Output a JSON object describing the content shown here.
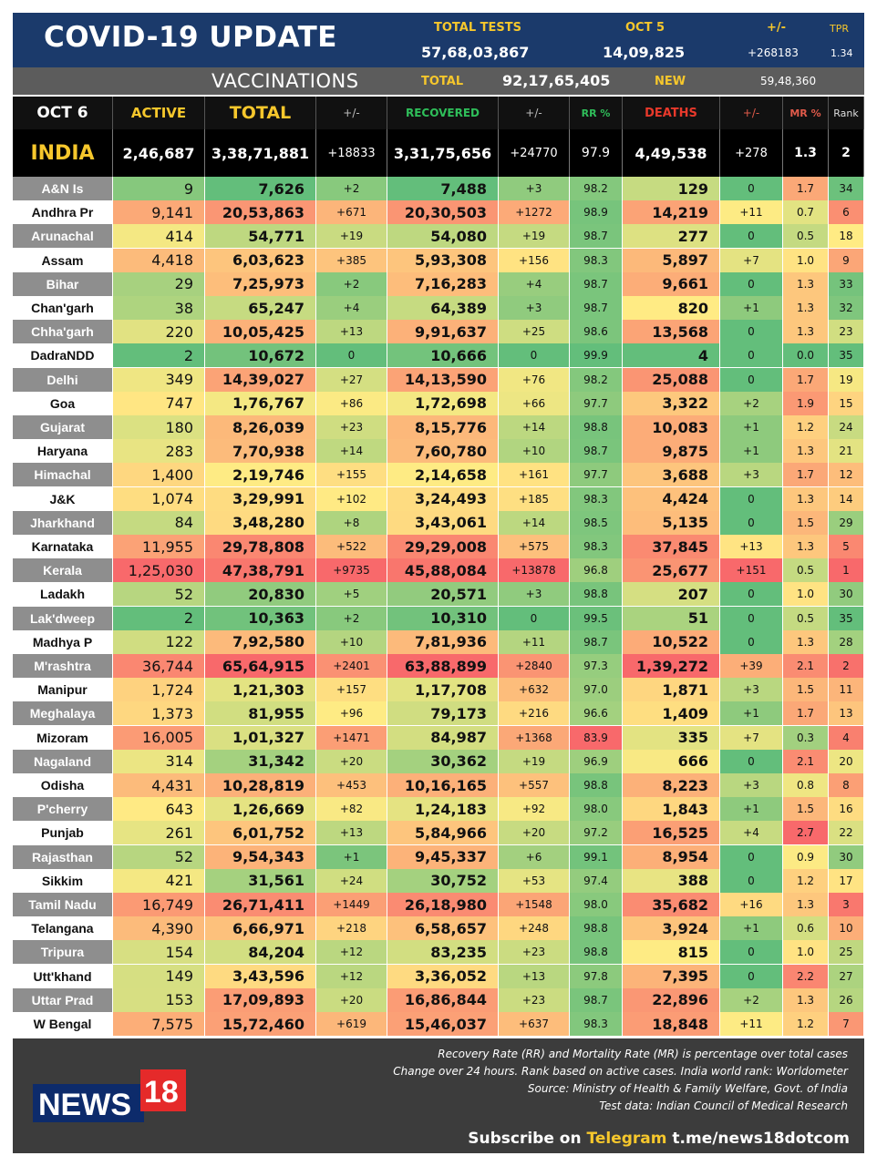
{
  "header": {
    "title": "COVID-19 UPDATE",
    "total_tests_label": "TOTAL TESTS",
    "total_tests_value": "57,68,03,867",
    "date_label": "OCT 5",
    "date_tests_value": "14,09,825",
    "change_label": "+/-",
    "change_value": "+268183",
    "tpr_label": "TPR",
    "tpr_value": "1.34"
  },
  "vaccinations": {
    "label": "VACCINATIONS",
    "total_label": "TOTAL",
    "total_value": "92,17,65,405",
    "new_label": "NEW",
    "new_value": "59,48,360"
  },
  "columns": [
    "OCT 6",
    "ACTIVE",
    "TOTAL",
    "+/-",
    "RECOVERED",
    "+/-",
    "RR %",
    "DEATHS",
    "+/-",
    "MR %",
    "Rank"
  ],
  "india": [
    "INDIA",
    "2,46,687",
    "3,38,71,881",
    "+18833",
    "3,31,75,656",
    "+24770",
    "97.9",
    "4,49,538",
    "+278",
    "1.3",
    "2"
  ],
  "rows": [
    [
      "A&N Is",
      "9",
      "7,626",
      "+2",
      "7,488",
      "+3",
      "98.2",
      "129",
      "0",
      "1.7",
      "34"
    ],
    [
      "Andhra Pr",
      "9,141",
      "20,53,863",
      "+671",
      "20,30,503",
      "+1272",
      "98.9",
      "14,219",
      "+11",
      "0.7",
      "6"
    ],
    [
      "Arunachal",
      "414",
      "54,771",
      "+19",
      "54,080",
      "+19",
      "98.7",
      "277",
      "0",
      "0.5",
      "18"
    ],
    [
      "Assam",
      "4,418",
      "6,03,623",
      "+385",
      "5,93,308",
      "+156",
      "98.3",
      "5,897",
      "+7",
      "1.0",
      "9"
    ],
    [
      "Bihar",
      "29",
      "7,25,973",
      "+2",
      "7,16,283",
      "+4",
      "98.7",
      "9,661",
      "0",
      "1.3",
      "33"
    ],
    [
      "Chan'garh",
      "38",
      "65,247",
      "+4",
      "64,389",
      "+3",
      "98.7",
      "820",
      "+1",
      "1.3",
      "32"
    ],
    [
      "Chha'garh",
      "220",
      "10,05,425",
      "+13",
      "9,91,637",
      "+25",
      "98.6",
      "13,568",
      "0",
      "1.3",
      "23"
    ],
    [
      "DadraNDD",
      "2",
      "10,672",
      "0",
      "10,666",
      "0",
      "99.9",
      "4",
      "0",
      "0.0",
      "35"
    ],
    [
      "Delhi",
      "349",
      "14,39,027",
      "+27",
      "14,13,590",
      "+76",
      "98.2",
      "25,088",
      "0",
      "1.7",
      "19"
    ],
    [
      "Goa",
      "747",
      "1,76,767",
      "+86",
      "1,72,698",
      "+66",
      "97.7",
      "3,322",
      "+2",
      "1.9",
      "15"
    ],
    [
      "Gujarat",
      "180",
      "8,26,039",
      "+23",
      "8,15,776",
      "+14",
      "98.8",
      "10,083",
      "+1",
      "1.2",
      "24"
    ],
    [
      "Haryana",
      "283",
      "7,70,938",
      "+14",
      "7,60,780",
      "+10",
      "98.7",
      "9,875",
      "+1",
      "1.3",
      "21"
    ],
    [
      "Himachal",
      "1,400",
      "2,19,746",
      "+155",
      "2,14,658",
      "+161",
      "97.7",
      "3,688",
      "+3",
      "1.7",
      "12"
    ],
    [
      "J&K",
      "1,074",
      "3,29,991",
      "+102",
      "3,24,493",
      "+185",
      "98.3",
      "4,424",
      "0",
      "1.3",
      "14"
    ],
    [
      "Jharkhand",
      "84",
      "3,48,280",
      "+8",
      "3,43,061",
      "+14",
      "98.5",
      "5,135",
      "0",
      "1.5",
      "29"
    ],
    [
      "Karnataka",
      "11,955",
      "29,78,808",
      "+522",
      "29,29,008",
      "+575",
      "98.3",
      "37,845",
      "+13",
      "1.3",
      "5"
    ],
    [
      "Kerala",
      "1,25,030",
      "47,38,791",
      "+9735",
      "45,88,084",
      "+13878",
      "96.8",
      "25,677",
      "+151",
      "0.5",
      "1"
    ],
    [
      "Ladakh",
      "52",
      "20,830",
      "+5",
      "20,571",
      "+3",
      "98.8",
      "207",
      "0",
      "1.0",
      "30"
    ],
    [
      "Lak'dweep",
      "2",
      "10,363",
      "+2",
      "10,310",
      "0",
      "99.5",
      "51",
      "0",
      "0.5",
      "35"
    ],
    [
      "Madhya P",
      "122",
      "7,92,580",
      "+10",
      "7,81,936",
      "+11",
      "98.7",
      "10,522",
      "0",
      "1.3",
      "28"
    ],
    [
      "M'rashtra",
      "36,744",
      "65,64,915",
      "+2401",
      "63,88,899",
      "+2840",
      "97.3",
      "1,39,272",
      "+39",
      "2.1",
      "2"
    ],
    [
      "Manipur",
      "1,724",
      "1,21,303",
      "+157",
      "1,17,708",
      "+632",
      "97.0",
      "1,871",
      "+3",
      "1.5",
      "11"
    ],
    [
      "Meghalaya",
      "1,373",
      "81,955",
      "+96",
      "79,173",
      "+216",
      "96.6",
      "1,409",
      "+1",
      "1.7",
      "13"
    ],
    [
      "Mizoram",
      "16,005",
      "1,01,327",
      "+1471",
      "84,987",
      "+1368",
      "83.9",
      "335",
      "+7",
      "0.3",
      "4"
    ],
    [
      "Nagaland",
      "314",
      "31,342",
      "+20",
      "30,362",
      "+19",
      "96.9",
      "666",
      "0",
      "2.1",
      "20"
    ],
    [
      "Odisha",
      "4,431",
      "10,28,819",
      "+453",
      "10,16,165",
      "+557",
      "98.8",
      "8,223",
      "+3",
      "0.8",
      "8"
    ],
    [
      "P'cherry",
      "643",
      "1,26,669",
      "+82",
      "1,24,183",
      "+92",
      "98.0",
      "1,843",
      "+1",
      "1.5",
      "16"
    ],
    [
      "Punjab",
      "261",
      "6,01,752",
      "+13",
      "5,84,966",
      "+20",
      "97.2",
      "16,525",
      "+4",
      "2.7",
      "22"
    ],
    [
      "Rajasthan",
      "52",
      "9,54,343",
      "+1",
      "9,45,337",
      "+6",
      "99.1",
      "8,954",
      "0",
      "0.9",
      "30"
    ],
    [
      "Sikkim",
      "421",
      "31,561",
      "+24",
      "30,752",
      "+53",
      "97.4",
      "388",
      "0",
      "1.2",
      "17"
    ],
    [
      "Tamil Nadu",
      "16,749",
      "26,71,411",
      "+1449",
      "26,18,980",
      "+1548",
      "98.0",
      "35,682",
      "+16",
      "1.3",
      "3"
    ],
    [
      "Telangana",
      "4,390",
      "6,66,971",
      "+218",
      "6,58,657",
      "+248",
      "98.8",
      "3,924",
      "+1",
      "0.6",
      "10"
    ],
    [
      "Tripura",
      "154",
      "84,204",
      "+12",
      "83,235",
      "+23",
      "98.8",
      "815",
      "0",
      "1.0",
      "25"
    ],
    [
      "Utt'khand",
      "149",
      "3,43,596",
      "+12",
      "3,36,052",
      "+13",
      "97.8",
      "7,395",
      "0",
      "2.2",
      "27"
    ],
    [
      "Uttar Prad",
      "153",
      "17,09,893",
      "+20",
      "16,86,844",
      "+23",
      "98.7",
      "22,896",
      "+2",
      "1.3",
      "26"
    ],
    [
      "W Bengal",
      "7,575",
      "15,72,460",
      "+619",
      "15,46,037",
      "+637",
      "98.3",
      "18,848",
      "+11",
      "1.2",
      "7"
    ]
  ],
  "colors": {
    "header_bg": "#1b3a6b",
    "accent_yellow": "#f6c72c",
    "recovered_green": "#2fbf5a",
    "deaths_red": "#e8392b",
    "heat_green": "#63be7b",
    "heat_yellow": "#ffeb84",
    "heat_red": "#f8696b"
  },
  "footer": {
    "logo_text": "NEWS",
    "logo_number": "18",
    "note1": "Recovery Rate (RR) and Mortality Rate (MR) is percentage over total cases",
    "note2": "Change over 24 hours. Rank based on active cases. India world rank: Worldometer",
    "note3": "Source: Ministry of Health & Family Welfare, Govt. of India",
    "note4": "Test data: Indian Council of Medical Research",
    "subscribe_prefix": "Subscribe on",
    "subscribe_channel": "Telegram",
    "subscribe_link": "t.me/news18dotcom"
  }
}
